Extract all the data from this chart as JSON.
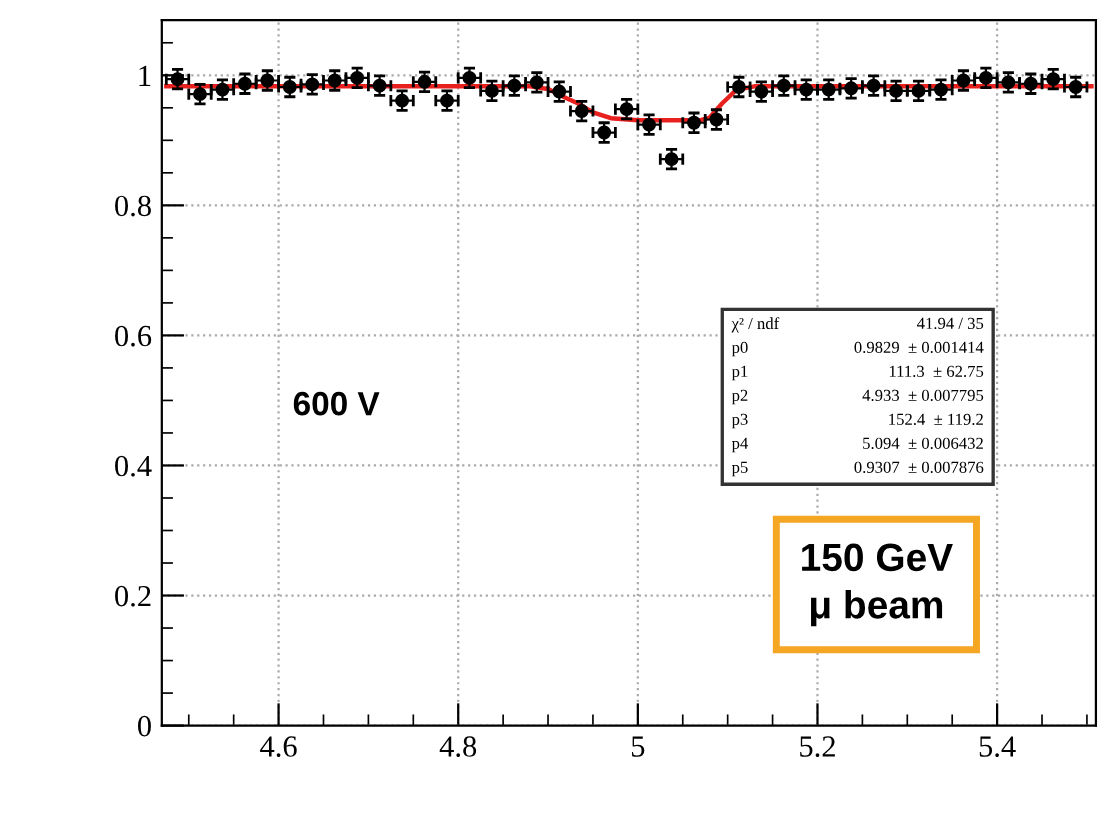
{
  "chart_data": {
    "type": "scatter",
    "x": [
      4.4875,
      4.5125,
      4.5375,
      4.5625,
      4.5875,
      4.6125,
      4.6375,
      4.6625,
      4.6875,
      4.7125,
      4.7375,
      4.7625,
      4.7875,
      4.8125,
      4.8375,
      4.8625,
      4.8875,
      4.9125,
      4.9375,
      4.9625,
      4.9875,
      5.0125,
      5.0375,
      5.0625,
      5.0875,
      5.1125,
      5.1375,
      5.1625,
      5.1875,
      5.2125,
      5.2375,
      5.2625,
      5.2875,
      5.3125,
      5.3375,
      5.3625,
      5.3875,
      5.4125,
      5.4375,
      5.4625,
      5.4875
    ],
    "series": [
      {
        "color": "#000000",
        "marker": "circle",
        "values": [
          0.994,
          0.971,
          0.978,
          0.987,
          0.992,
          0.982,
          0.986,
          0.992,
          0.996,
          0.984,
          0.961,
          0.99,
          0.961,
          0.996,
          0.976,
          0.984,
          0.989,
          0.975,
          0.945,
          0.912,
          0.948,
          0.924,
          0.871,
          0.927,
          0.932,
          0.982,
          0.975,
          0.984,
          0.978,
          0.978,
          0.98,
          0.984,
          0.976,
          0.976,
          0.978,
          0.992,
          0.996,
          0.989,
          0.987,
          0.994,
          0.982
        ],
        "errors": [
          0.015,
          0.015,
          0.015,
          0.015,
          0.015,
          0.015,
          0.015,
          0.015,
          0.015,
          0.015,
          0.015,
          0.015,
          0.015,
          0.015,
          0.015,
          0.015,
          0.015,
          0.015,
          0.015,
          0.015,
          0.015,
          0.015,
          0.015,
          0.015,
          0.015,
          0.015,
          0.015,
          0.015,
          0.015,
          0.015,
          0.015,
          0.015,
          0.015,
          0.015,
          0.015,
          0.015,
          0.015,
          0.015,
          0.015,
          0.015,
          0.015
        ],
        "xerrors": [
          0.0125,
          0.0125,
          0.0125,
          0.0125,
          0.0125,
          0.0125,
          0.0125,
          0.0125,
          0.0125,
          0.0125,
          0.0125,
          0.0125,
          0.0125,
          0.0125,
          0.0125,
          0.0125,
          0.0125,
          0.0125,
          0.0125,
          0.0125,
          0.0125,
          0.0125,
          0.0125,
          0.0125,
          0.0125,
          0.0125,
          0.0125,
          0.0125,
          0.0125,
          0.0125,
          0.0125,
          0.0125,
          0.0125,
          0.0125,
          0.0125,
          0.0125,
          0.0125,
          0.0125,
          0.0125,
          0.0125,
          0.0125
        ]
      },
      {
        "type": "line",
        "color": "#e8201e",
        "line_style": "solid",
        "x": [
          4.475,
          4.88,
          4.9,
          4.92,
          4.933,
          4.95,
          4.97,
          5.0,
          5.07,
          5.08,
          5.094,
          5.11,
          5.13,
          5.505
        ],
        "values": [
          0.983,
          0.983,
          0.979,
          0.965,
          0.957,
          0.943,
          0.934,
          0.931,
          0.931,
          0.935,
          0.957,
          0.978,
          0.983,
          0.983
        ]
      }
    ],
    "xlim": [
      4.47,
      5.51
    ],
    "ylim": [
      0,
      1.085
    ],
    "xticks": [
      4.6,
      4.8,
      5,
      5.2,
      5.4
    ],
    "yticks": [
      0,
      0.2,
      0.4,
      0.6,
      0.8,
      1
    ],
    "grid": true,
    "legend": false,
    "annotations": [
      "600 V",
      "150 GeV\nμ beam",
      "χ² / ndf",
      "41.94 / 35",
      "p0",
      "0.9829  ± 0.001414",
      "p1",
      "111.3  ± 62.75",
      "p2",
      "4.933  ± 0.007795",
      "p3",
      "152.4  ± 119.2",
      "p4",
      "5.094  ± 0.006432",
      "p5",
      "0.9307  ± 0.007876"
    ]
  }
}
